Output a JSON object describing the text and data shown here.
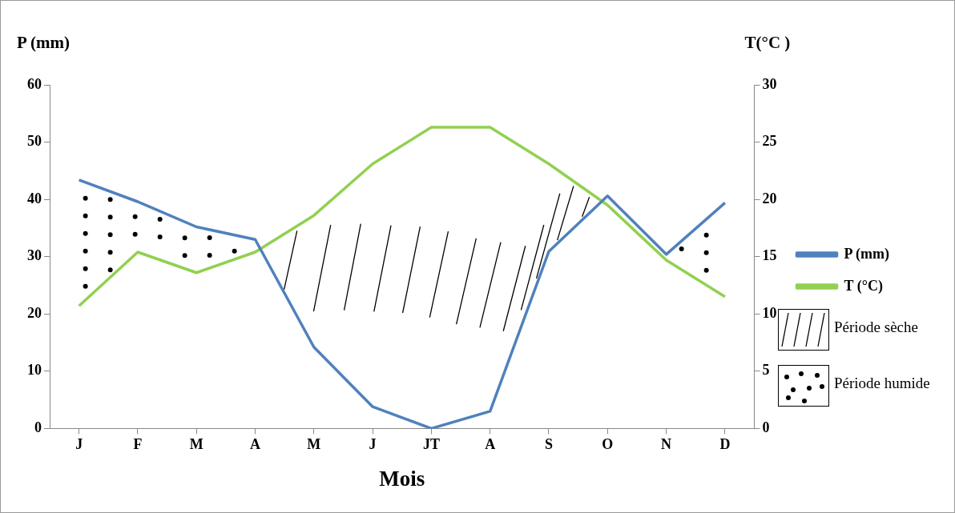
{
  "chart_data": {
    "type": "line",
    "xlabel": "Mois",
    "ylabel": "P (mm)",
    "y2label": "T(°C )",
    "categories": [
      "J",
      "F",
      "M",
      "A",
      "M",
      "J",
      "JT",
      "A",
      "S",
      "O",
      "N",
      "D"
    ],
    "series": [
      {
        "name": "P (mm)",
        "color": "#4f81bd",
        "values": [
          43.4,
          39.6,
          35.2,
          33,
          14.2,
          3.8,
          0,
          3,
          30.9,
          40.6,
          30.4,
          39.4
        ]
      },
      {
        "name": "T (°C)",
        "color": "#92d050",
        "axis": "y2",
        "values": [
          10.7,
          15.4,
          13.6,
          15.4,
          18.6,
          23.1,
          26.3,
          26.3,
          23.1,
          19.5,
          14.7,
          11.5
        ]
      }
    ],
    "ylim": [
      0,
      60
    ],
    "yticks": [
      0,
      10,
      20,
      30,
      40,
      50,
      60
    ],
    "y2lim": [
      0,
      30
    ],
    "y2ticks": [
      0,
      5,
      10,
      15,
      20,
      25,
      30
    ],
    "legend": "right",
    "grid": false,
    "marker": "none",
    "annotations": [
      "Période sèche",
      "Période humide"
    ]
  }
}
